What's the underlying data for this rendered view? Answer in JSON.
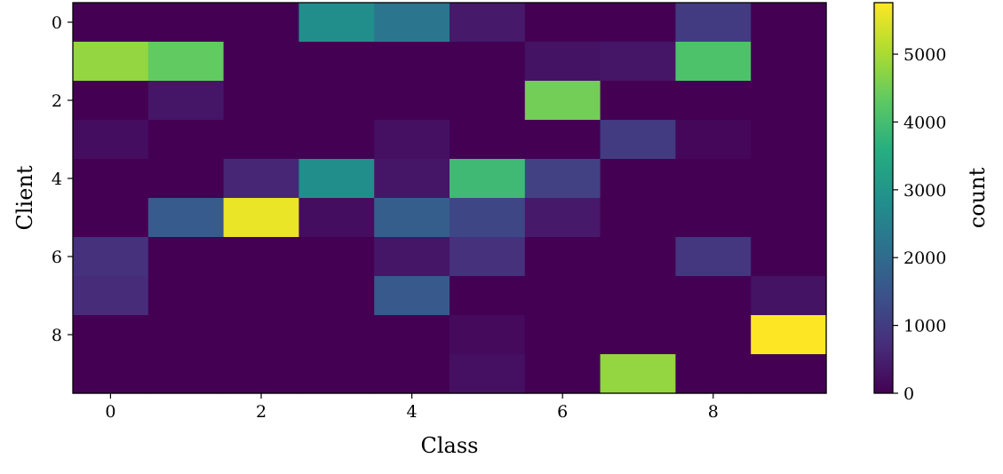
{
  "chart_data": {
    "type": "heatmap",
    "xlabel": "Class",
    "ylabel": "Client",
    "colorbar_label": "count",
    "colormap": "viridis",
    "vmin": 0,
    "vmax": 5760,
    "x_categories": [
      0,
      1,
      2,
      3,
      4,
      5,
      6,
      7,
      8,
      9
    ],
    "y_categories": [
      0,
      1,
      2,
      3,
      4,
      5,
      6,
      7,
      8,
      9
    ],
    "x_tick_labels": [
      "0",
      "2",
      "4",
      "6",
      "8"
    ],
    "y_tick_labels": [
      "0",
      "2",
      "4",
      "6",
      "8"
    ],
    "colorbar_ticks": [
      "0",
      "1000",
      "2000",
      "3000",
      "4000",
      "5000"
    ],
    "values": [
      [
        0,
        0,
        0,
        2800,
        2250,
        400,
        0,
        0,
        1000,
        0
      ],
      [
        4800,
        4350,
        0,
        0,
        0,
        0,
        300,
        350,
        4100,
        0
      ],
      [
        0,
        350,
        0,
        0,
        0,
        0,
        4500,
        0,
        0,
        0
      ],
      [
        200,
        0,
        0,
        0,
        250,
        0,
        0,
        1000,
        100,
        0
      ],
      [
        0,
        0,
        600,
        2800,
        350,
        3900,
        1100,
        0,
        0,
        0
      ],
      [
        0,
        1650,
        5600,
        200,
        1700,
        1200,
        400,
        0,
        0,
        0
      ],
      [
        800,
        0,
        0,
        0,
        350,
        800,
        0,
        0,
        900,
        0
      ],
      [
        700,
        0,
        0,
        0,
        1600,
        0,
        0,
        0,
        0,
        300
      ],
      [
        0,
        0,
        0,
        0,
        0,
        150,
        0,
        0,
        0,
        5760
      ],
      [
        0,
        0,
        0,
        0,
        0,
        250,
        0,
        4800,
        0,
        0
      ]
    ]
  }
}
